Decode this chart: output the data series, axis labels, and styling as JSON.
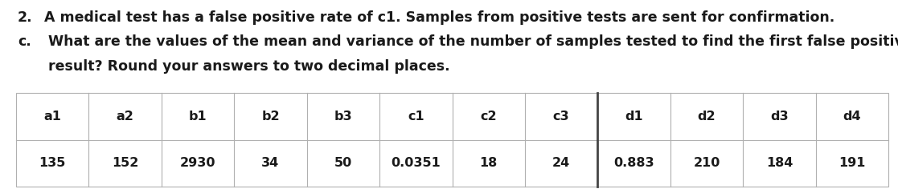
{
  "title_line1": "2.   A medical test has a false positive rate of c1. Samples from positive tests are sent for confirmation.",
  "subtitle_c": "c.",
  "subtitle_text1": "What are the values of the mean and variance of the number of samples tested to find the first false positive",
  "subtitle_text2": "result? Round your answers to two decimal places.",
  "headers": [
    "a1",
    "a2",
    "b1",
    "b2",
    "b3",
    "c1",
    "c2",
    "c3",
    "d1",
    "d2",
    "d3",
    "d4"
  ],
  "values": [
    "135",
    "152",
    "2930",
    "34",
    "50",
    "0.0351",
    "18",
    "24",
    "0.883",
    "210",
    "184",
    "191"
  ],
  "thick_border_after_col": 8,
  "bg_color": "#ffffff",
  "text_color": "#1a1a1a",
  "table_line_color": "#b0b0b0",
  "thick_line_color": "#444444",
  "font_family": "DejaVu Sans",
  "font_size_title": 12.5,
  "font_size_subtitle": 12.5,
  "font_size_table": 11.5,
  "fig_width": 11.17,
  "fig_height": 2.41,
  "dpi": 100
}
